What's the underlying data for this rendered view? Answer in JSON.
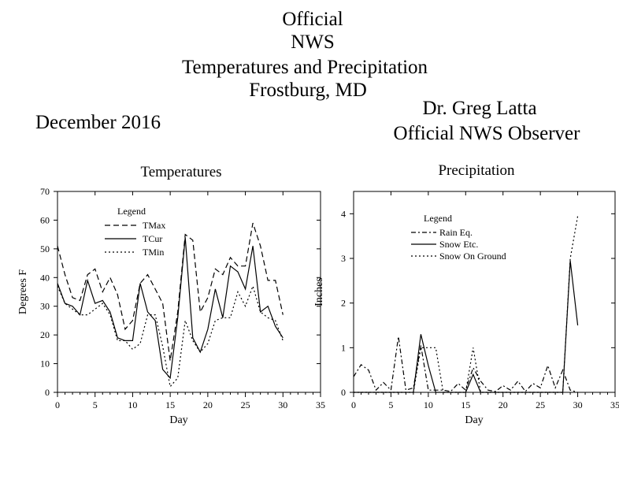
{
  "header": {
    "title_lines": [
      "Official",
      "NWS",
      "Temperatures and Precipitation",
      "Frostburg, MD"
    ],
    "date": "December 2016",
    "observer_name": "Dr. Greg Latta",
    "observer_title": "Official NWS Observer"
  },
  "chart_data": [
    {
      "type": "line",
      "title": "Temperatures",
      "xlabel": "Day",
      "ylabel": "Degrees F",
      "xlim": [
        0,
        35
      ],
      "ylim": [
        0,
        70
      ],
      "xticks": [
        0,
        5,
        10,
        15,
        20,
        25,
        30,
        35
      ],
      "yticks": [
        0,
        10,
        20,
        30,
        40,
        50,
        60,
        70
      ],
      "legend_title": "Legend",
      "legend_position": "top-left",
      "grid": false,
      "x": [
        0,
        1,
        2,
        3,
        4,
        5,
        6,
        7,
        8,
        9,
        10,
        11,
        12,
        13,
        14,
        15,
        16,
        17,
        18,
        19,
        20,
        21,
        22,
        23,
        24,
        25,
        26,
        27,
        28,
        29,
        30
      ],
      "series": [
        {
          "name": "TMax",
          "dash": "dashed",
          "values": [
            51,
            41,
            33,
            32,
            41,
            43,
            35,
            40,
            34,
            22,
            25,
            38,
            41,
            36,
            31,
            11,
            28,
            55,
            53,
            28,
            33,
            43,
            41,
            47,
            44,
            44,
            59,
            51,
            39,
            39,
            27
          ]
        },
        {
          "name": "TCur",
          "dash": "solid",
          "values": [
            38,
            31,
            30,
            27,
            39,
            31,
            32,
            28,
            19,
            18,
            18,
            38,
            28,
            25,
            8,
            5,
            26,
            54,
            19,
            14,
            22,
            36,
            26,
            44,
            42,
            36,
            51,
            28,
            30,
            23,
            19
          ]
        },
        {
          "name": "TMin",
          "dash": "dotted",
          "values": [
            37,
            31,
            29,
            27,
            27,
            29,
            31,
            27,
            18,
            18,
            15,
            17,
            27,
            27,
            16,
            2,
            5,
            25,
            18,
            14,
            17,
            25,
            26,
            26,
            35,
            30,
            37,
            28,
            26,
            25,
            18
          ]
        }
      ]
    },
    {
      "type": "line",
      "title": "Precipitation",
      "xlabel": "Day",
      "ylabel": "Inches",
      "xlim": [
        0,
        35
      ],
      "ylim": [
        0,
        4.5
      ],
      "xticks": [
        0,
        5,
        10,
        15,
        20,
        25,
        30,
        35
      ],
      "yticks": [
        0,
        1,
        2,
        3,
        4
      ],
      "legend_title": "Legend",
      "legend_position": "top-left",
      "grid": false,
      "x": [
        0,
        1,
        2,
        3,
        4,
        5,
        6,
        7,
        8,
        9,
        10,
        11,
        12,
        13,
        14,
        15,
        16,
        17,
        18,
        19,
        20,
        21,
        22,
        23,
        24,
        25,
        26,
        27,
        28,
        29,
        30
      ],
      "series": [
        {
          "name": "Rain Eq.",
          "dash": "dash-dot",
          "values": [
            0.35,
            0.62,
            0.5,
            0.05,
            0.22,
            0.05,
            1.25,
            0.05,
            0.1,
            1.05,
            0.05,
            0.05,
            0.05,
            0.02,
            0.2,
            0.05,
            0.55,
            0.25,
            0.05,
            0.02,
            0.15,
            0.05,
            0.25,
            0.02,
            0.2,
            0.1,
            0.6,
            0.1,
            0.5,
            0.05,
            0.0
          ]
        },
        {
          "name": "Snow Etc.",
          "dash": "solid",
          "values": [
            0,
            0,
            0,
            0,
            0,
            0,
            0,
            0,
            0,
            1.3,
            0.6,
            0,
            0,
            0,
            0,
            0,
            0.4,
            0,
            0,
            0,
            0,
            0,
            0,
            0,
            0,
            0,
            0,
            0,
            0,
            2.95,
            1.5
          ]
        },
        {
          "name": "Snow On Ground",
          "dash": "dotted",
          "values": [
            0,
            0,
            0,
            0,
            0,
            0,
            0,
            0,
            0,
            1.0,
            1.0,
            1.0,
            0,
            0,
            0,
            0,
            1.0,
            0,
            0,
            0,
            0,
            0,
            0,
            0,
            0,
            0,
            0,
            0,
            0,
            3.0,
            3.95
          ]
        }
      ]
    }
  ]
}
